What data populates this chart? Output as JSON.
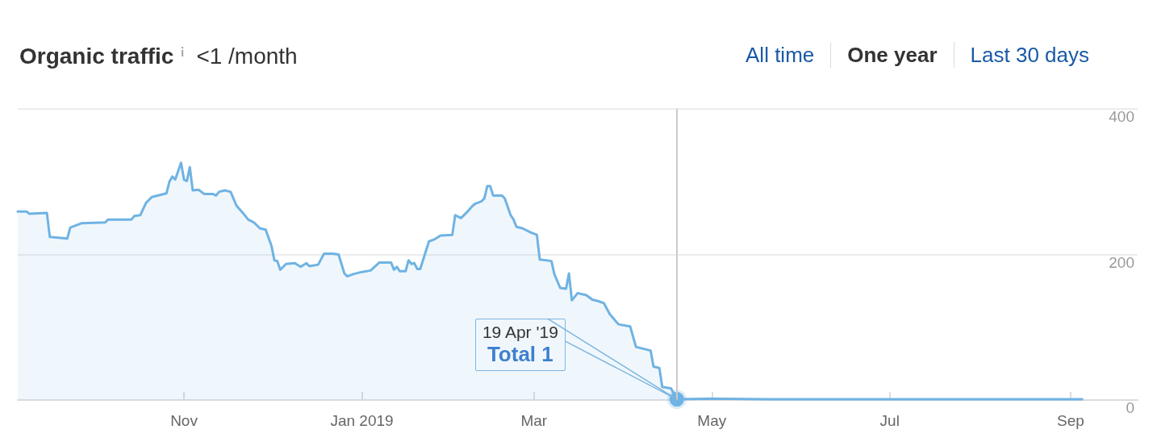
{
  "chart_data": {
    "type": "area",
    "title": "Organic traffic",
    "subtitle": "<1 /month",
    "annotations": [
      "All time",
      "One year",
      "Last 30 days",
      "19 Apr '19",
      "Total 1"
    ],
    "x": [
      "2018-09-05",
      "2018-09-08",
      "2018-09-09",
      "2018-09-15",
      "2018-09-16",
      "2018-09-22",
      "2018-09-23",
      "2018-09-27",
      "2018-10-05",
      "2018-10-06",
      "2018-10-14",
      "2018-10-15",
      "2018-10-17",
      "2018-10-19",
      "2018-10-21",
      "2018-10-24",
      "2018-10-26",
      "2018-10-27",
      "2018-10-28",
      "2018-10-29",
      "2018-10-31",
      "2018-11-01",
      "2018-11-02",
      "2018-11-03",
      "2018-11-04",
      "2018-11-06",
      "2018-11-08",
      "2018-11-11",
      "2018-11-12",
      "2018-11-13",
      "2018-11-15",
      "2018-11-17",
      "2018-11-19",
      "2018-11-21",
      "2018-11-23",
      "2018-11-25",
      "2018-11-27",
      "2018-11-29",
      "2018-12-01",
      "2018-12-02",
      "2018-12-03",
      "2018-12-04",
      "2018-12-06",
      "2018-12-09",
      "2018-12-11",
      "2018-12-13",
      "2018-12-14",
      "2018-12-17",
      "2018-12-19",
      "2018-12-22",
      "2018-12-24",
      "2018-12-26",
      "2018-12-27",
      "2018-12-29",
      "2019-01-01",
      "2019-01-04",
      "2019-01-07",
      "2019-01-11",
      "2019-01-12",
      "2019-01-13",
      "2019-01-14",
      "2019-01-16",
      "2019-01-17",
      "2019-01-18",
      "2019-01-19",
      "2019-01-20",
      "2019-01-21",
      "2019-01-24",
      "2019-01-26",
      "2019-01-28",
      "2019-02-01",
      "2019-02-02",
      "2019-02-04",
      "2019-02-06",
      "2019-02-08",
      "2019-02-09",
      "2019-02-11",
      "2019-02-12",
      "2019-02-13",
      "2019-02-14",
      "2019-02-15",
      "2019-02-18",
      "2019-02-19",
      "2019-02-21",
      "2019-02-22",
      "2019-02-23",
      "2019-02-25",
      "2019-02-28",
      "2019-03-02",
      "2019-03-03",
      "2019-03-07",
      "2019-03-08",
      "2019-03-10",
      "2019-03-12",
      "2019-03-13",
      "2019-03-14",
      "2019-03-16",
      "2019-03-19",
      "2019-03-21",
      "2019-03-23",
      "2019-03-25",
      "2019-03-27",
      "2019-03-30",
      "2019-04-03",
      "2019-04-05",
      "2019-04-10",
      "2019-04-11",
      "2019-04-13",
      "2019-04-14",
      "2019-04-17",
      "2019-04-19",
      "2019-05-01",
      "2019-05-20",
      "2019-09-05"
    ],
    "series": [
      {
        "color": "#6fb3e3",
        "values": [
          259,
          259,
          256,
          257,
          224,
          222,
          237,
          243,
          244,
          248,
          248,
          253,
          254,
          271,
          279,
          282,
          284,
          300,
          307,
          303,
          326,
          303,
          301,
          320,
          288,
          289,
          283,
          283,
          281,
          286,
          288,
          286,
          267,
          258,
          248,
          244,
          236,
          234,
          212,
          192,
          191,
          179,
          187,
          188,
          183,
          188,
          184,
          186,
          201,
          201,
          200,
          174,
          170,
          173,
          176,
          178,
          189,
          189,
          179,
          183,
          177,
          177,
          192,
          187,
          188,
          180,
          180,
          218,
          221,
          226,
          227,
          254,
          250,
          258,
          267,
          270,
          273,
          277,
          294,
          294,
          281,
          281,
          277,
          254,
          248,
          238,
          236,
          230,
          227,
          193,
          191,
          173,
          154,
          153,
          174,
          137,
          147,
          144,
          138,
          136,
          133,
          118,
          104,
          101,
          73,
          68,
          46,
          44,
          18,
          16,
          1,
          2,
          1,
          1
        ]
      }
    ],
    "xlim": [
      "2018-09-05",
      "2019-09-24"
    ],
    "xticks": [
      {
        "value": "2018-11-01",
        "label": "Nov"
      },
      {
        "value": "2019-01-01",
        "label": "Jan 2019"
      },
      {
        "value": "2019-03-01",
        "label": "Mar"
      },
      {
        "value": "2019-05-01",
        "label": "May"
      },
      {
        "value": "2019-07-01",
        "label": "Jul"
      },
      {
        "value": "2019-09-01",
        "label": "Sep"
      }
    ],
    "ylim": [
      0,
      400
    ],
    "yticks": [
      0,
      200,
      400
    ],
    "ref_lines": [
      {
        "axis": "x",
        "value": "2019-04-19",
        "label": null,
        "color": "#cccccc"
      }
    ],
    "grid": "y",
    "marker": "none",
    "line_style": "solid"
  }
}
